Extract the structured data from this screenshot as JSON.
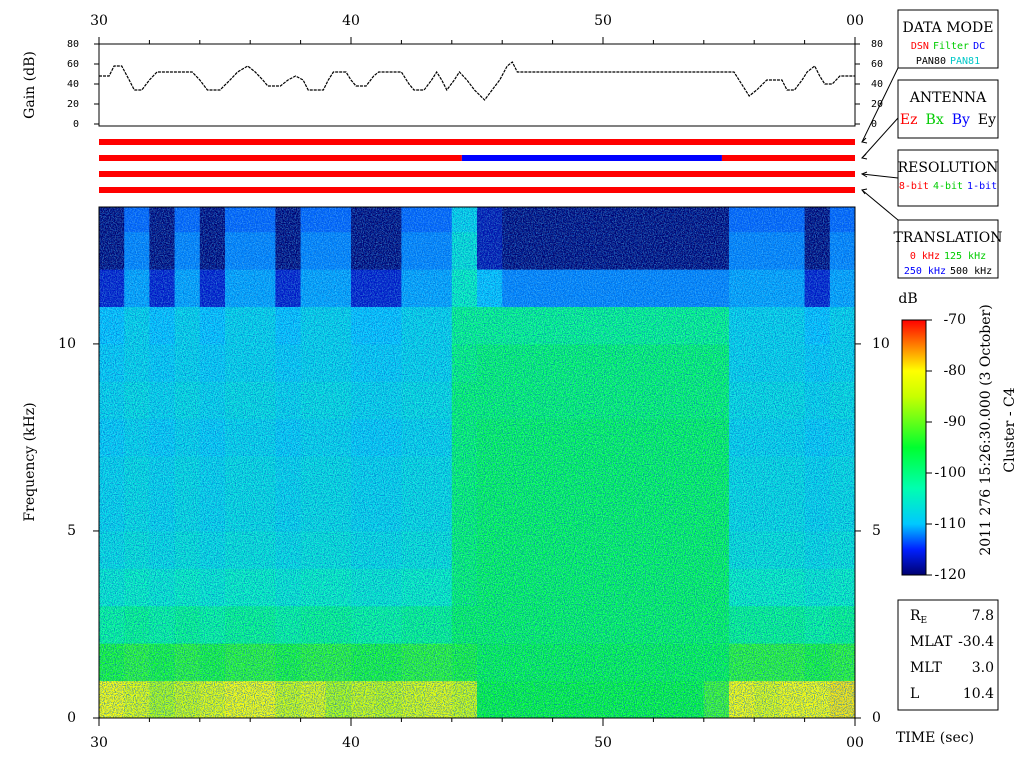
{
  "chart_data": [
    {
      "type": "line",
      "ylabel": "Gain (dB)",
      "color": "#000000",
      "x": [
        30.0,
        30.4,
        30.6,
        30.9,
        31.2,
        31.4,
        31.7,
        32.0,
        32.3,
        33.7,
        34.0,
        34.3,
        34.8,
        35.2,
        35.5,
        35.9,
        36.2,
        36.5,
        36.7,
        37.2,
        37.5,
        37.8,
        38.1,
        38.3,
        38.9,
        39.1,
        39.3,
        39.8,
        40.0,
        40.2,
        40.6,
        40.9,
        41.1,
        42.0,
        42.3,
        42.5,
        42.9,
        43.2,
        43.4,
        43.6,
        43.8,
        44.1,
        44.3,
        44.6,
        44.9,
        45.3,
        45.6,
        45.9,
        46.2,
        46.4,
        46.6,
        55.2,
        55.5,
        55.8,
        56.1,
        56.5,
        57.1,
        57.3,
        57.6,
        57.9,
        58.1,
        58.4,
        58.6,
        58.8,
        59.1,
        59.4,
        60.0
      ],
      "values": [
        48,
        48,
        58,
        58,
        44,
        34,
        34,
        44,
        52,
        52,
        44,
        34,
        34,
        44,
        52,
        58,
        52,
        44,
        38,
        38,
        44,
        48,
        44,
        34,
        34,
        44,
        52,
        52,
        44,
        38,
        38,
        48,
        52,
        52,
        40,
        34,
        34,
        44,
        52,
        44,
        34,
        44,
        52,
        44,
        34,
        24,
        34,
        44,
        58,
        62,
        52,
        52,
        40,
        28,
        34,
        44,
        44,
        34,
        34,
        44,
        52,
        58,
        48,
        40,
        40,
        48,
        48
      ],
      "xlim": [
        30,
        60
      ],
      "xticks": [
        30,
        40,
        50,
        {
          "value": 60,
          "label": "00"
        }
      ],
      "xminorticks": [
        32,
        34,
        36,
        38,
        42,
        44,
        46,
        48,
        52,
        54,
        56,
        58
      ],
      "ylim": [
        0,
        80
      ],
      "yticks": [
        0,
        20,
        40,
        60,
        80
      ]
    },
    {
      "type": "timeline",
      "xlim": [
        30,
        60
      ],
      "rows": [
        [
          {
            "from": 30,
            "to": 60,
            "color": "#ff0000"
          }
        ],
        [
          {
            "from": 30,
            "to": 44.4,
            "color": "#ff0000"
          },
          {
            "from": 44.4,
            "to": 54.72,
            "color": "#0000ff"
          },
          {
            "from": 54.72,
            "to": 60,
            "color": "#ff0000"
          }
        ],
        [
          {
            "from": 30,
            "to": 60,
            "color": "#ff0000"
          }
        ],
        [
          {
            "from": 30,
            "to": 60,
            "color": "#ff0000"
          }
        ]
      ]
    },
    {
      "type": "heatmap",
      "ylabel": "Frequency (kHz)",
      "xlabel": "TIME (sec)",
      "xlim": [
        30,
        60
      ],
      "xticks": [
        30,
        40,
        50,
        {
          "value": 60,
          "label": "00"
        }
      ],
      "xminorticks": [
        32,
        34,
        36,
        38,
        42,
        44,
        46,
        48,
        52,
        54,
        56,
        58
      ],
      "ylim": [
        0,
        13.66
      ],
      "yticks": [
        0,
        5,
        10
      ],
      "x_bins": [
        30,
        31,
        32,
        33,
        34,
        35,
        36,
        37,
        38,
        39,
        40,
        41,
        42,
        43,
        44,
        45,
        46,
        47,
        48,
        49,
        50,
        51,
        52,
        53,
        54,
        55,
        56,
        57,
        58,
        59,
        60
      ],
      "y_bins": [
        0,
        1,
        2,
        3,
        4,
        5,
        6,
        7,
        8,
        9,
        10,
        11,
        12,
        13,
        13.66
      ],
      "z": [
        [
          -80,
          -94,
          -101,
          -105,
          -107,
          -108,
          -108,
          -109,
          -108,
          -109,
          -110,
          -117,
          -120,
          -120
        ],
        [
          -82,
          -93,
          -100,
          -104,
          -106,
          -107,
          -107,
          -108,
          -107,
          -108,
          -108,
          -111,
          -112,
          -113
        ],
        [
          -86,
          -94,
          -101,
          -105,
          -107,
          -108,
          -108,
          -109,
          -108,
          -109,
          -110,
          -117,
          -120,
          -120
        ],
        [
          -84,
          -93,
          -100,
          -104,
          -106,
          -107,
          -107,
          -108,
          -107,
          -108,
          -108,
          -111,
          -112,
          -113
        ],
        [
          -82,
          -94,
          -101,
          -105,
          -107,
          -108,
          -108,
          -109,
          -108,
          -109,
          -110,
          -117,
          -120,
          -120
        ],
        [
          -80,
          -93,
          -100,
          -104,
          -106,
          -107,
          -107,
          -108,
          -107,
          -108,
          -108,
          -111,
          -112,
          -113
        ],
        [
          -80,
          -93,
          -100,
          -104,
          -106,
          -107,
          -107,
          -108,
          -107,
          -108,
          -108,
          -111,
          -112,
          -113
        ],
        [
          -84,
          -94,
          -101,
          -105,
          -107,
          -108,
          -108,
          -109,
          -108,
          -109,
          -110,
          -117,
          -120,
          -120
        ],
        [
          -82,
          -93,
          -100,
          -104,
          -106,
          -107,
          -107,
          -108,
          -107,
          -108,
          -108,
          -111,
          -112,
          -113
        ],
        [
          -86,
          -93,
          -100,
          -104,
          -106,
          -107,
          -107,
          -108,
          -107,
          -108,
          -108,
          -111,
          -112,
          -113
        ],
        [
          -84,
          -94,
          -101,
          -105,
          -107,
          -108,
          -108,
          -109,
          -108,
          -109,
          -110,
          -117,
          -120,
          -120
        ],
        [
          -85,
          -94,
          -101,
          -105,
          -107,
          -108,
          -108,
          -109,
          -108,
          -109,
          -110,
          -117,
          -120,
          -120
        ],
        [
          -83,
          -93,
          -100,
          -104,
          -106,
          -107,
          -107,
          -108,
          -107,
          -108,
          -108,
          -111,
          -112,
          -113
        ],
        [
          -82,
          -93,
          -100,
          -104,
          -106,
          -107,
          -107,
          -108,
          -107,
          -108,
          -108,
          -111,
          -112,
          -113
        ],
        [
          -84,
          -94,
          -97,
          -98,
          -98,
          -98,
          -98,
          -98,
          -98,
          -99,
          -100,
          -104,
          -106,
          -108
        ],
        [
          -95,
          -96,
          -97,
          -97,
          -97,
          -97,
          -97,
          -97,
          -98,
          -98,
          -100,
          -110,
          -118,
          -118
        ],
        [
          -95,
          -96,
          -97,
          -97,
          -97,
          -97,
          -97,
          -97,
          -98,
          -98,
          -100,
          -112,
          -120,
          -120
        ],
        [
          -95,
          -96,
          -97,
          -97,
          -97,
          -97,
          -97,
          -97,
          -98,
          -98,
          -100,
          -112,
          -120,
          -120
        ],
        [
          -95,
          -96,
          -97,
          -97,
          -97,
          -97,
          -97,
          -97,
          -98,
          -98,
          -100,
          -112,
          -120,
          -120
        ],
        [
          -95,
          -96,
          -97,
          -97,
          -97,
          -97,
          -97,
          -97,
          -98,
          -98,
          -100,
          -112,
          -120,
          -120
        ],
        [
          -95,
          -96,
          -97,
          -97,
          -97,
          -97,
          -97,
          -97,
          -98,
          -98,
          -100,
          -112,
          -120,
          -120
        ],
        [
          -95,
          -96,
          -97,
          -97,
          -97,
          -97,
          -97,
          -97,
          -98,
          -98,
          -100,
          -112,
          -120,
          -120
        ],
        [
          -95,
          -96,
          -97,
          -97,
          -97,
          -97,
          -97,
          -97,
          -98,
          -98,
          -100,
          -112,
          -120,
          -120
        ],
        [
          -95,
          -96,
          -97,
          -97,
          -97,
          -97,
          -97,
          -97,
          -98,
          -98,
          -100,
          -112,
          -120,
          -120
        ],
        [
          -92,
          -96,
          -97,
          -97,
          -97,
          -97,
          -97,
          -97,
          -98,
          -98,
          -100,
          -112,
          -120,
          -120
        ],
        [
          -80,
          -93,
          -100,
          -104,
          -106,
          -107,
          -107,
          -108,
          -107,
          -108,
          -108,
          -111,
          -112,
          -113
        ],
        [
          -82,
          -93,
          -100,
          -104,
          -106,
          -107,
          -107,
          -108,
          -107,
          -108,
          -108,
          -111,
          -112,
          -113
        ],
        [
          -80,
          -93,
          -100,
          -104,
          -106,
          -107,
          -107,
          -108,
          -107,
          -108,
          -108,
          -111,
          -112,
          -113
        ],
        [
          -80,
          -94,
          -101,
          -105,
          -107,
          -108,
          -108,
          -109,
          -108,
          -109,
          -110,
          -117,
          -120,
          -120
        ],
        [
          -79,
          -93,
          -100,
          -104,
          -106,
          -107,
          -107,
          -108,
          -107,
          -108,
          -108,
          -111,
          -112,
          -113
        ]
      ],
      "colorscale": [
        {
          "value": -120,
          "color": "#000070"
        },
        {
          "value": -115,
          "color": "#0020ff"
        },
        {
          "value": -110,
          "color": "#00c8ff"
        },
        {
          "value": -103,
          "color": "#00ffb0"
        },
        {
          "value": -95,
          "color": "#00ff30"
        },
        {
          "value": -85,
          "color": "#c8ff00"
        },
        {
          "value": -80,
          "color": "#ffff00"
        },
        {
          "value": -75,
          "color": "#ff8000"
        },
        {
          "value": -70,
          "color": "#ff0000"
        }
      ],
      "colorbar": {
        "title": "dB",
        "lim": [
          -120,
          -70
        ],
        "ticks": [
          -70,
          -80,
          -90,
          -100,
          -110,
          -120
        ]
      }
    }
  ],
  "panels": [
    {
      "title": "DATA MODE",
      "lines": [
        [
          {
            "text": "DSN",
            "color": "#ff0000"
          },
          {
            "text": "Filter",
            "color": "#00cc00"
          },
          {
            "text": "DC",
            "color": "#0000ff"
          }
        ],
        [
          {
            "text": "PAN80",
            "color": "#000000"
          },
          {
            "text": "PAN81",
            "color": "#00c8c8"
          }
        ]
      ]
    },
    {
      "title": "ANTENNA",
      "lines": [
        [
          {
            "text": "Ez",
            "color": "#ff0000"
          },
          {
            "text": "Bx",
            "color": "#00cc00"
          },
          {
            "text": "By",
            "color": "#0000ff"
          },
          {
            "text": "Ey",
            "color": "#000000"
          }
        ]
      ]
    },
    {
      "title": "RESOLUTION",
      "lines": [
        [
          {
            "text": "8-bit",
            "color": "#ff0000"
          },
          {
            "text": "4-bit",
            "color": "#00cc00"
          },
          {
            "text": "1-bit",
            "color": "#0000ff"
          }
        ]
      ]
    },
    {
      "title": "TRANSLATION",
      "lines": [
        [
          {
            "text": "0 kHz",
            "color": "#ff0000"
          },
          {
            "text": "125 kHz",
            "color": "#00cc00"
          }
        ],
        [
          {
            "text": "250 kHz",
            "color": "#0000ff"
          },
          {
            "text": "500 kHz",
            "color": "#000000"
          }
        ]
      ]
    }
  ],
  "side_text": [
    "2011 276 15:26:30.000 (3 October)",
    "Cluster - C4"
  ],
  "info": [
    {
      "label": "R",
      "sub": "E",
      "value": "7.8"
    },
    {
      "label": "MLAT",
      "value": "-30.4"
    },
    {
      "label": "MLT",
      "value": "3.0"
    },
    {
      "label": "L",
      "value": "10.4"
    }
  ]
}
